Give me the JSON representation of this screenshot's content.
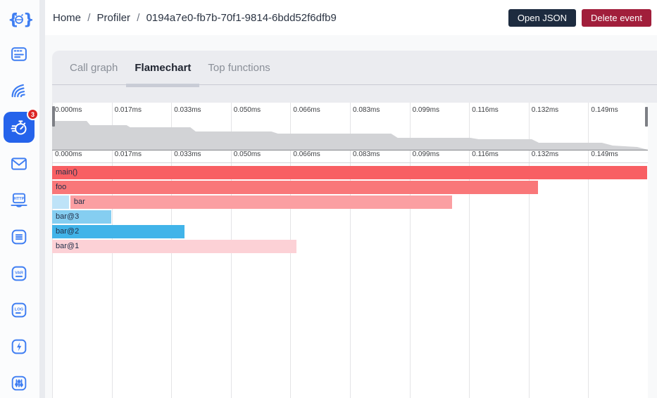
{
  "header": {
    "breadcrumb": {
      "home": "Home",
      "section": "Profiler",
      "event_id": "0194a7e0-fb7b-70f1-9814-6bdd52f6dfb9",
      "separator": "/"
    },
    "buttons": [
      {
        "label": "Open JSON",
        "bg": "#1d2b3f"
      },
      {
        "label": "Delete event",
        "bg": "#a11e3b"
      }
    ]
  },
  "sidebar": {
    "accent": "#3f7ef2",
    "active_bg": "#2563eb",
    "badge_bg": "#dc2626",
    "profiler_badge": "3",
    "items": [
      {
        "name": "logo",
        "glyph_text": "{ }"
      },
      {
        "name": "app-window"
      },
      {
        "name": "waves"
      },
      {
        "name": "profiler",
        "active": true,
        "badge": "3"
      },
      {
        "name": "mail"
      },
      {
        "name": "http",
        "glyph_text": "HTTP"
      },
      {
        "name": "list"
      },
      {
        "name": "var",
        "glyph_text": "VAR"
      },
      {
        "name": "log",
        "glyph_text": "LOG"
      },
      {
        "name": "bolt"
      },
      {
        "name": "sliders"
      }
    ]
  },
  "tabs": [
    {
      "label": "Call graph",
      "active": false
    },
    {
      "label": "Flamechart",
      "active": true
    },
    {
      "label": "Top functions",
      "active": false
    }
  ],
  "chart_data": {
    "type": "flamechart",
    "unit": "ms",
    "total_ms": 0.166,
    "ticks": [
      "0.000ms",
      "0.017ms",
      "0.033ms",
      "0.050ms",
      "0.066ms",
      "0.083ms",
      "0.099ms",
      "0.116ms",
      "0.132ms",
      "0.149ms"
    ],
    "frames": [
      {
        "name": "main()",
        "depth": 0,
        "start_ms": 0.0,
        "end_ms": 0.166,
        "left_pct": 0,
        "width_pct": 100,
        "color": "#f85f63"
      },
      {
        "name": "foo",
        "depth": 1,
        "start_ms": 0.0,
        "end_ms": 0.1357,
        "left_pct": 0,
        "width_pct": 81.7,
        "color": "#f97779"
      },
      {
        "name": "",
        "depth": 2,
        "start_ms": 0.0,
        "end_ms": 0.0049,
        "left_pct": 0,
        "width_pct": 2.95,
        "color": "#bee3f8"
      },
      {
        "name": "bar",
        "depth": 2,
        "start_ms": 0.0051,
        "end_ms": 0.1116,
        "left_pct": 3.06,
        "width_pct": 64.2,
        "color": "#fb9fa2"
      },
      {
        "name": "bar@3",
        "depth": 3,
        "start_ms": 0.0,
        "end_ms": 0.0168,
        "left_pct": 0,
        "width_pct": 10.1,
        "color": "#85cef1"
      },
      {
        "name": "bar@2",
        "depth": 4,
        "start_ms": 0.0,
        "end_ms": 0.037,
        "left_pct": 0,
        "width_pct": 22.3,
        "color": "#41b4e9"
      },
      {
        "name": "bar@1",
        "depth": 5,
        "start_ms": 0.0,
        "end_ms": 0.0682,
        "left_pct": 0,
        "width_pct": 41.1,
        "color": "#fcd1d6"
      }
    ],
    "minimap": {
      "fill": "#d2d3d6",
      "points": [
        [
          0,
          2
        ],
        [
          5.8,
          2
        ],
        [
          6.4,
          8
        ],
        [
          12.5,
          8
        ],
        [
          13.1,
          11
        ],
        [
          23.2,
          11
        ],
        [
          24.1,
          17
        ],
        [
          36.8,
          17
        ],
        [
          37.9,
          20
        ],
        [
          56.9,
          20
        ],
        [
          58,
          26
        ],
        [
          70.2,
          26
        ],
        [
          71.6,
          28
        ],
        [
          80.5,
          28
        ],
        [
          81.7,
          33
        ],
        [
          92.3,
          33
        ],
        [
          94.1,
          37
        ],
        [
          98.2,
          39
        ],
        [
          100,
          43
        ]
      ]
    }
  }
}
